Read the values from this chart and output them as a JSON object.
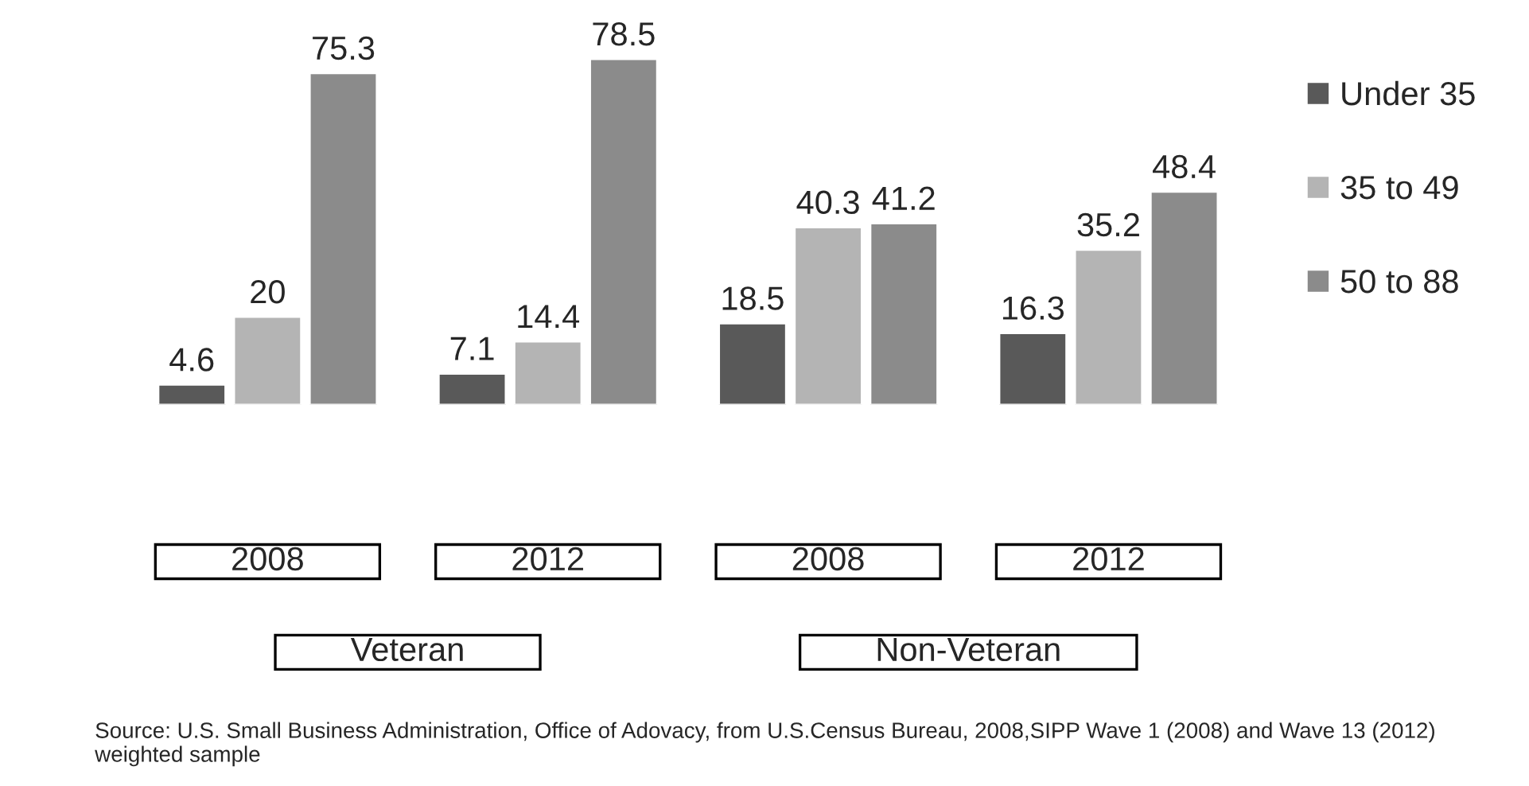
{
  "chart_data": {
    "type": "bar",
    "categories": [
      "2008",
      "2012",
      "2008",
      "2012"
    ],
    "series": [
      {
        "name": "Under 35",
        "color": "#595959",
        "values": [
          4.6,
          7.1,
          18.5,
          16.3
        ]
      },
      {
        "name": "35 to 49",
        "color": "#b4b4b4",
        "values": [
          20,
          14.4,
          40.3,
          35.2
        ]
      },
      {
        "name": "50 to 88",
        "color": "#8b8b8b",
        "values": [
          75.3,
          78.5,
          41.2,
          48.4
        ]
      }
    ],
    "data_labels": true,
    "legend": "right",
    "grid": false,
    "annotations": [
      "Veteran",
      "Non-Veteran",
      "Source: U.S. Small Business Administration, Office of Adovacy, from U.S.Census Bureau, 2008,SIPP Wave 1 (2008) and Wave 13 (2012) weighted sample"
    ]
  }
}
